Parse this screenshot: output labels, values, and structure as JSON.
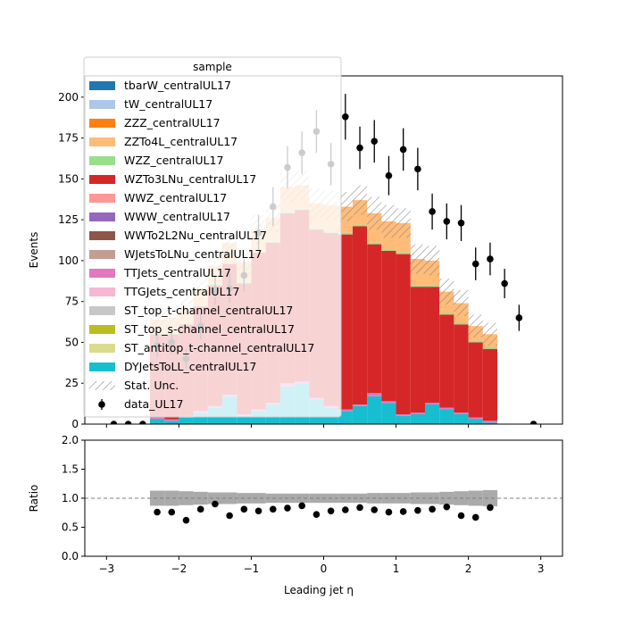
{
  "chart_data": [
    {
      "type": "stacked-step-histogram",
      "xlabel": "",
      "ylabel": "Events",
      "xlim": [
        -3.3,
        3.3
      ],
      "ylim": [
        0,
        213
      ],
      "bin_edges": [
        -2.4,
        -2.2,
        -2.0,
        -1.8,
        -1.6,
        -1.4,
        -1.2,
        -1.0,
        -0.8,
        -0.6,
        -0.4,
        -0.2,
        0.0,
        0.2,
        0.4,
        0.6,
        0.8,
        1.0,
        1.2,
        1.4,
        1.6,
        1.8,
        2.0,
        2.2,
        2.4
      ],
      "yticks": [
        0,
        25,
        50,
        75,
        100,
        125,
        150,
        175,
        200
      ],
      "series": [
        {
          "name": "DYJetsToLL_centralUL17",
          "color": "#17becf",
          "values": [
            3,
            2,
            4,
            7,
            10,
            17,
            5,
            8,
            12,
            23,
            25,
            15,
            10,
            8,
            11,
            17,
            13,
            5,
            6,
            12,
            9,
            6,
            3,
            1
          ]
        },
        {
          "name": "TTJets_centralUL17",
          "color": "#e377c2",
          "values": [
            1,
            1,
            1,
            1,
            1,
            1,
            1,
            1,
            1,
            2,
            1,
            1,
            1,
            1,
            1,
            2,
            1,
            1,
            1,
            1,
            1,
            1,
            1,
            1
          ]
        },
        {
          "name": "WZTo3LNu_centralUL17",
          "color": "#d62728",
          "values": [
            51,
            52,
            56,
            64,
            74,
            80,
            80,
            96,
            98,
            104,
            105,
            103,
            106,
            107,
            109,
            91,
            92,
            98,
            77,
            71,
            57,
            54,
            46,
            44
          ]
        },
        {
          "name": "WZZ_centralUL17",
          "color": "#98df8a",
          "values": [
            1,
            1,
            1,
            1,
            1,
            1,
            1,
            1,
            1,
            1,
            1,
            1,
            1,
            1,
            1,
            1,
            1,
            1,
            1,
            1,
            1,
            1,
            1,
            1
          ]
        },
        {
          "name": "ZZTo4L_centralUL17",
          "color": "#ffbb78",
          "values": [
            8,
            9,
            9,
            10,
            11,
            12,
            12,
            13,
            14,
            15,
            14,
            15,
            16,
            16,
            15,
            18,
            17,
            18,
            16,
            15,
            13,
            12,
            9,
            8
          ]
        }
      ],
      "legend_only_series": [
        {
          "name": "tbarW_centralUL17",
          "color": "#1f77b4"
        },
        {
          "name": "tW_centralUL17",
          "color": "#aec7e8"
        },
        {
          "name": "ZZZ_centralUL17",
          "color": "#ff7f0e"
        },
        {
          "name": "WWZ_centralUL17",
          "color": "#ff9896"
        },
        {
          "name": "WWW_centralUL17",
          "color": "#9467bd"
        },
        {
          "name": "WWTo2L2Nu_centralUL17",
          "color": "#8c564b"
        },
        {
          "name": "WJetsToLNu_centralUL17",
          "color": "#c49c94"
        },
        {
          "name": "TTGJets_centralUL17",
          "color": "#f7b6d2"
        },
        {
          "name": "ST_top_t-channel_centralUL17",
          "color": "#c7c7c7"
        },
        {
          "name": "ST_top_s-channel_centralUL17",
          "color": "#bcbd22"
        },
        {
          "name": "ST_antitop_t-channel_centralUL17",
          "color": "#dbdb8d"
        }
      ],
      "stat_unc": [
        7,
        7,
        7,
        7,
        8,
        8,
        8,
        9,
        9,
        9,
        9,
        9,
        9,
        9,
        9,
        10,
        10,
        9,
        9,
        9,
        8,
        8,
        7,
        7
      ],
      "data_points": {
        "x": [
          -2.9,
          -2.7,
          -2.5,
          -2.3,
          -2.1,
          -1.9,
          -1.7,
          -1.5,
          -1.3,
          -1.1,
          -0.9,
          -0.7,
          -0.5,
          -0.3,
          -0.1,
          0.1,
          0.3,
          0.5,
          0.7,
          0.9,
          1.1,
          1.3,
          1.5,
          1.7,
          1.9,
          2.1,
          2.3,
          2.5,
          2.7,
          2.9
        ],
        "y": [
          0,
          0,
          0,
          48,
          50,
          40,
          60,
          82,
          83,
          91,
          117,
          133,
          157,
          166,
          179,
          159,
          188,
          169,
          173,
          152,
          168,
          156,
          130,
          124,
          123,
          98,
          101,
          86,
          65,
          0
        ],
        "yerr": [
          0,
          0,
          0,
          7,
          7,
          6,
          8,
          9,
          9,
          10,
          11,
          12,
          13,
          13,
          13,
          13,
          14,
          13,
          13,
          12,
          13,
          13,
          11,
          11,
          11,
          10,
          10,
          9,
          8,
          0
        ]
      },
      "legend": {
        "title": "sample",
        "stat_unc_label": "Stat. Unc.",
        "data_label": "data_UL17",
        "placement": "upper-left"
      }
    },
    {
      "type": "scatter",
      "xlabel": "Leading jet  η",
      "ylabel": "Ratio",
      "xlim": [
        -3.3,
        3.3
      ],
      "ylim": [
        0,
        2
      ],
      "xticks": [
        -3,
        -2,
        -1,
        0,
        1,
        2,
        3
      ],
      "xtick_labels": [
        "−3",
        "−2",
        "−1",
        "0",
        "1",
        "2",
        "3"
      ],
      "yticks": [
        0.0,
        0.5,
        1.0,
        1.5,
        2.0
      ],
      "ytick_labels": [
        "0.0",
        "0.5",
        "1.0",
        "1.5",
        "2.0"
      ],
      "reference_line": 1.0,
      "x": [
        -2.3,
        -2.1,
        -1.9,
        -1.7,
        -1.5,
        -1.3,
        -1.1,
        -0.9,
        -0.7,
        -0.5,
        -0.3,
        -0.1,
        0.1,
        0.3,
        0.5,
        0.7,
        0.9,
        1.1,
        1.3,
        1.5,
        1.7,
        1.9,
        2.1,
        2.3
      ],
      "values": [
        0.76,
        0.76,
        0.62,
        0.81,
        0.9,
        0.7,
        0.81,
        0.78,
        0.81,
        0.83,
        0.87,
        0.72,
        0.78,
        0.8,
        0.84,
        0.8,
        0.76,
        0.77,
        0.79,
        0.81,
        0.85,
        0.7,
        0.67,
        0.84
      ],
      "unc_band": [
        0.13,
        0.13,
        0.12,
        0.11,
        0.1,
        0.1,
        0.09,
        0.09,
        0.08,
        0.08,
        0.08,
        0.08,
        0.08,
        0.08,
        0.08,
        0.09,
        0.09,
        0.09,
        0.1,
        0.1,
        0.11,
        0.12,
        0.13,
        0.14
      ]
    }
  ]
}
